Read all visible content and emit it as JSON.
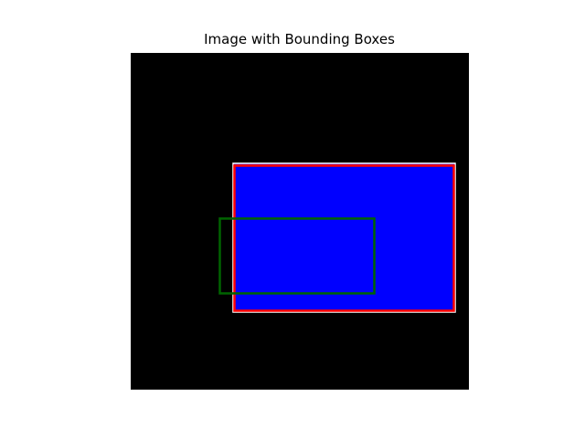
{
  "title": "Image with Bounding Boxes",
  "colors": {
    "figure_background": "#ffffff",
    "image_background": "#000000",
    "filled_region": "#0000ff",
    "region_outline": "#ffffff",
    "box_red": "#ff0000",
    "box_green": "#006400"
  },
  "elements": [
    {
      "name": "blue-rectangle",
      "fill": "#0000ff",
      "outline": "#ffffff"
    },
    {
      "name": "red-bounding-box",
      "stroke": "#ff0000"
    },
    {
      "name": "green-bounding-box",
      "stroke": "#006400"
    }
  ]
}
